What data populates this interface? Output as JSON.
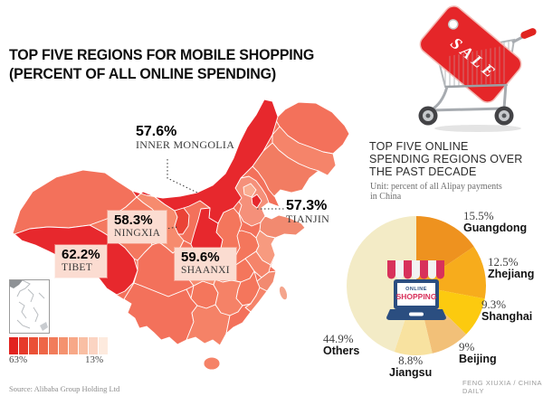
{
  "title": {
    "line1": "TOP FIVE REGIONS FOR MOBILE SHOPPING",
    "line2": "(PERCENT OF ALL ONLINE SPENDING)"
  },
  "map": {
    "callouts": [
      {
        "region": "INNER MONGOLIA",
        "value_label": "57.6%"
      },
      {
        "region": "TIANJIN",
        "value_label": "57.3%"
      },
      {
        "region": "NINGXIA",
        "value_label": "58.3%"
      },
      {
        "region": "TIBET",
        "value_label": "62.2%"
      },
      {
        "region": "SHAANXI",
        "value_label": "59.6%"
      }
    ],
    "source": "Source: Alibaba Group Holding Ltd"
  },
  "right_panel": {
    "heading_lines": [
      "TOP FIVE ONLINE",
      "SPENDING REGIONS OVER",
      "THE PAST DECADE"
    ],
    "unit_lines": [
      "Unit: percent of all Alipay payments",
      "in China"
    ],
    "credit": "FENG XIUXIA / CHINA DAILY",
    "sale_tag_label": "SALE",
    "shop_icon": {
      "line1": "ONLINE",
      "line2": "SHOPPING"
    }
  },
  "chart_data": [
    {
      "type": "choropleth",
      "title": "TOP FIVE REGIONS FOR MOBILE SHOPPING",
      "subtitle": "(PERCENT OF ALL ONLINE SPENDING)",
      "regions": [
        {
          "name": "Tibet",
          "value": 62.2
        },
        {
          "name": "Shaanxi",
          "value": 59.6
        },
        {
          "name": "Ningxia",
          "value": 58.3
        },
        {
          "name": "Inner Mongolia",
          "value": 57.6
        },
        {
          "name": "Tianjin",
          "value": 57.3
        }
      ],
      "scale": {
        "min": 13,
        "max": 63,
        "min_label": "13%",
        "max_label": "63%",
        "colors": [
          "#e2231f",
          "#e63a2a",
          "#ea5036",
          "#ee6647",
          "#f17c5b",
          "#f4926f",
          "#f7a888",
          "#f9bfa4",
          "#fbd4c2",
          "#fdeade"
        ]
      },
      "source": "Alibaba Group Holding Ltd"
    },
    {
      "type": "pie",
      "title": "TOP FIVE ONLINE SPENDING REGIONS OVER THE PAST DECADE",
      "unit": "percent of all Alipay payments in China",
      "labels": [
        "Guangdong",
        "Zhejiang",
        "Shanghai",
        "Beijing",
        "Jiangsu",
        "Others"
      ],
      "values": [
        15.5,
        12.5,
        9.3,
        9,
        8.8,
        44.9
      ],
      "value_labels": [
        "15.5%",
        "12.5%",
        "9.3%",
        "9%",
        "8.8%",
        "44.9%"
      ],
      "colors": [
        "#ee921f",
        "#f7ac1c",
        "#fcca0f",
        "#f2c078",
        "#f8e2a0",
        "#f3ebc6"
      ],
      "start_angle_deg": 0,
      "direction": "clockwise",
      "legend_position": "around"
    }
  ]
}
